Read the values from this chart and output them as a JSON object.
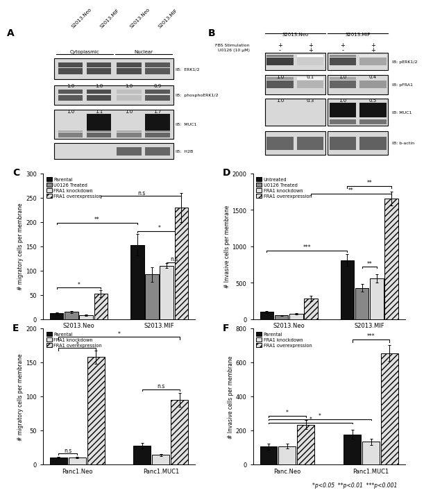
{
  "panel_A": {
    "label": "A",
    "sample_labels": [
      "S2013.Neo",
      "S2013.MIF",
      "S2013.Neo",
      "S2013.MIF"
    ],
    "group_labels": [
      "Cytoplasmic",
      "Nuclear"
    ],
    "blot_labels": [
      "IB:  ERK1/2",
      "IB:  phosphoERK1/2",
      "IB:  MUC1",
      "IB:  H2B"
    ],
    "values_erk": [
      "1.0",
      "1.0",
      "1.0",
      "0.9"
    ],
    "values_perk": [
      "1.0",
      "1.1",
      "1.0",
      "1.7"
    ]
  },
  "panel_B": {
    "label": "B",
    "fbs_stimulation": [
      "+",
      "+",
      "+",
      "+"
    ],
    "u0126": [
      "-",
      "+",
      "-",
      "+"
    ],
    "group_labels": [
      "S2013.Neo",
      "S2013.MIF"
    ],
    "blot_labels": [
      "IB: pERK1/2",
      "IB: pFRA1",
      "IB: MUC1",
      "IB: b-actin"
    ],
    "values_perk": [
      "1.0",
      "0.1",
      "1.0",
      "0.4"
    ],
    "values_pfra1": [
      "1.0",
      "0.3",
      "1.0",
      "0.5"
    ]
  },
  "panel_C": {
    "label": "C",
    "ylabel": "# migratory cells per membrane",
    "groups": [
      "S2013.Neo",
      "S2013.MIF"
    ],
    "categories": [
      "Parental",
      "U0126 Treated",
      "FRA1 knockdown",
      "FRA1 overexpression"
    ],
    "values": [
      [
        12,
        15,
        8,
        52
      ],
      [
        153,
        92,
        110,
        230
      ]
    ],
    "errors": [
      [
        2,
        2,
        1,
        7
      ],
      [
        22,
        15,
        5,
        30
      ]
    ],
    "ylim": [
      0,
      300
    ],
    "yticks": [
      0,
      50,
      100,
      150,
      200,
      250,
      300
    ]
  },
  "panel_D": {
    "label": "D",
    "ylabel": "# Invasive cells per membrane",
    "groups": [
      "S2013.Neo",
      "S2013.MIF"
    ],
    "categories": [
      "Untreated",
      "U0126 Treated",
      "FRA1 knockdown",
      "FRA1 overexpression"
    ],
    "values": [
      [
        100,
        50,
        75,
        280
      ],
      [
        810,
        430,
        560,
        1660
      ]
    ],
    "errors": [
      [
        15,
        8,
        10,
        40
      ],
      [
        80,
        55,
        55,
        95
      ]
    ],
    "ylim": [
      0,
      2000
    ],
    "yticks": [
      0,
      500,
      1000,
      1500,
      2000
    ]
  },
  "panel_E": {
    "label": "E",
    "ylabel": "# migratory cells per membrane",
    "groups": [
      "Panc1.Neo",
      "Panc1.MUC1"
    ],
    "categories": [
      "Parental",
      "FRA1 knockdown",
      "FRA1 overexpression"
    ],
    "values": [
      [
        10,
        10,
        158
      ],
      [
        28,
        14,
        95
      ]
    ],
    "errors": [
      [
        1,
        1,
        10
      ],
      [
        4,
        2,
        10
      ]
    ],
    "ylim": [
      0,
      200
    ],
    "yticks": [
      0,
      50,
      100,
      150,
      200
    ]
  },
  "panel_F": {
    "label": "F",
    "ylabel": "# Invasive cells per membrane",
    "groups": [
      "Panc.Neo",
      "Panc1.MUC1"
    ],
    "categories": [
      "Parental",
      "FRA1 knockdown",
      "FRA1 overexpression"
    ],
    "values": [
      [
        105,
        108,
        235
      ],
      [
        178,
        135,
        655
      ]
    ],
    "errors": [
      [
        18,
        14,
        28
      ],
      [
        28,
        18,
        48
      ]
    ],
    "ylim": [
      0,
      800
    ],
    "yticks": [
      0,
      200,
      400,
      600,
      800
    ]
  },
  "footnote": "*p<0.05  **p<0.01  ***p<0.001",
  "background_color": "#ffffff"
}
